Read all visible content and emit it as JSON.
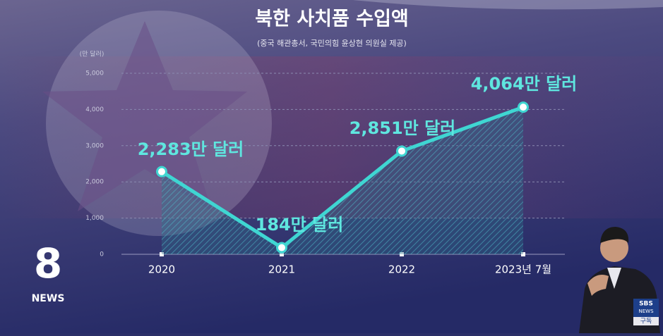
{
  "chart_data": {
    "type": "line",
    "title": "북한 사치품 수입액",
    "subtitle": "(중국 해관총서, 국민의힘 윤상현 의원실 제공)",
    "y_label": "(만 달러)",
    "categories": [
      "2020",
      "2021",
      "2022",
      "2023년 7월"
    ],
    "values": [
      2283,
      184,
      2851,
      4064
    ],
    "value_labels": [
      "2,283만 달러",
      "184만 달러",
      "2,851만 달러",
      "4,064만 달러"
    ],
    "color": "#3fd6d2",
    "ylim": [
      0,
      5000
    ],
    "yticks": [
      0,
      {
        "value": 1000,
        "label": "1,000"
      },
      {
        "value": 2000,
        "label": "2,000"
      },
      {
        "value": 3000,
        "label": "3,000"
      },
      {
        "value": 4000,
        "label": "4,000"
      },
      {
        "value": 5000,
        "label": "5,000"
      }
    ],
    "grid": true
  },
  "branding": {
    "logo_number": "8",
    "logo_text": "NEWS",
    "channel": "SBS",
    "channel_sub": "NEWS",
    "subscribe": "구독"
  }
}
